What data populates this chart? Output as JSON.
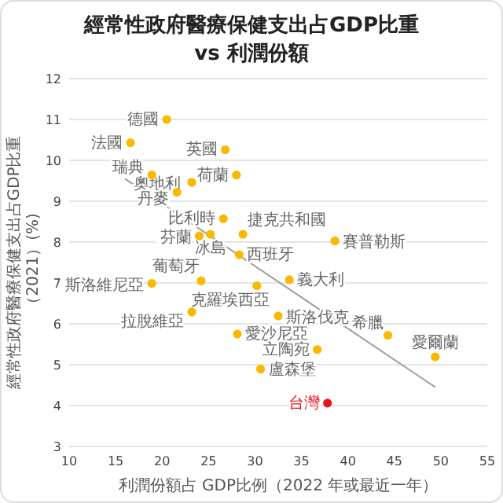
{
  "chart_data": {
    "type": "scatter",
    "title": "經常性政府醫療保健支出占GDP比重",
    "subtitle": "vs 利潤份額",
    "xlabel": "利潤份額占 GDP比例（2022 年或最近一年）",
    "ylabel": "經常性政府醫療保健支出占GDP比重（2021）(%)",
    "xlim": [
      10,
      55
    ],
    "xticks": [
      10,
      15,
      20,
      25,
      30,
      35,
      40,
      45,
      50,
      55
    ],
    "ylim": [
      3,
      12
    ],
    "yticks": [
      3,
      4,
      5,
      6,
      7,
      8,
      9,
      10,
      11,
      12
    ],
    "grid": "y",
    "series": [
      {
        "marker": "circle",
        "x": [
          20.5,
          16.6,
          26.8,
          18.9,
          23.2,
          21.6,
          28.0,
          26.6,
          24.0,
          25.2,
          28.7,
          24.2,
          28.3,
          38.6,
          18.9,
          30.2,
          33.7,
          23.2,
          32.5,
          28.1,
          36.7,
          30.6,
          44.3,
          49.4,
          37.8
        ],
        "values": [
          11.0,
          10.43,
          10.26,
          9.64,
          9.46,
          9.22,
          9.64,
          8.57,
          8.15,
          8.19,
          8.19,
          7.05,
          7.69,
          8.03,
          6.99,
          6.93,
          7.08,
          6.29,
          6.19,
          5.75,
          5.37,
          4.89,
          5.72,
          5.19,
          4.06
        ],
        "colors": [
          "#fbb800",
          "#fbb800",
          "#fbb800",
          "#fbb800",
          "#fbb800",
          "#fbb800",
          "#fbb800",
          "#fbb800",
          "#fbb800",
          "#fbb800",
          "#fbb800",
          "#fbb800",
          "#fbb800",
          "#fbb800",
          "#fbb800",
          "#fbb800",
          "#fbb800",
          "#fbb800",
          "#fbb800",
          "#fbb800",
          "#fbb800",
          "#fbb800",
          "#fbb800",
          "#fbb800",
          "#e8141c"
        ]
      },
      {
        "type": "line",
        "x": [
          16.0,
          49.4
        ],
        "values": [
          9.55,
          4.45
        ],
        "color": "#a0a0a0"
      }
    ],
    "annotations": [
      {
        "text": "德國",
        "x": 20.5,
        "y": 11.0
      },
      {
        "text": "法國",
        "x": 16.6,
        "y": 10.43
      },
      {
        "text": "英國",
        "x": 26.8,
        "y": 10.26
      },
      {
        "text": "瑞典",
        "x": 18.9,
        "y": 9.64
      },
      {
        "text": "奧地利",
        "x": 23.2,
        "y": 9.46
      },
      {
        "text": "丹麥",
        "x": 21.6,
        "y": 9.22
      },
      {
        "text": "荷蘭",
        "x": 28.0,
        "y": 9.64
      },
      {
        "text": "比利時",
        "x": 26.6,
        "y": 8.57
      },
      {
        "text": "芬蘭",
        "x": 24.0,
        "y": 8.15
      },
      {
        "text": "冰島",
        "x": 25.2,
        "y": 8.19
      },
      {
        "text": "捷克共和國",
        "x": 28.7,
        "y": 8.19
      },
      {
        "text": "葡萄牙",
        "x": 24.2,
        "y": 7.05
      },
      {
        "text": "西班牙",
        "x": 28.3,
        "y": 7.69
      },
      {
        "text": "賽普勒斯",
        "x": 38.6,
        "y": 8.03
      },
      {
        "text": "斯洛維尼亞",
        "x": 18.9,
        "y": 6.99
      },
      {
        "text": "克羅埃西亞",
        "x": 30.2,
        "y": 6.93
      },
      {
        "text": "義大利",
        "x": 33.7,
        "y": 7.08
      },
      {
        "text": "拉脫維亞",
        "x": 23.2,
        "y": 6.29
      },
      {
        "text": "斯洛伐克",
        "x": 32.5,
        "y": 6.19
      },
      {
        "text": "愛沙尼亞",
        "x": 28.1,
        "y": 5.75
      },
      {
        "text": "立陶宛",
        "x": 36.7,
        "y": 5.37
      },
      {
        "text": "盧森堡",
        "x": 30.6,
        "y": 4.89
      },
      {
        "text": "希臘",
        "x": 44.3,
        "y": 5.72
      },
      {
        "text": "愛爾蘭",
        "x": 49.4,
        "y": 5.19
      },
      {
        "text": "台灣",
        "x": 37.8,
        "y": 4.06
      }
    ]
  }
}
